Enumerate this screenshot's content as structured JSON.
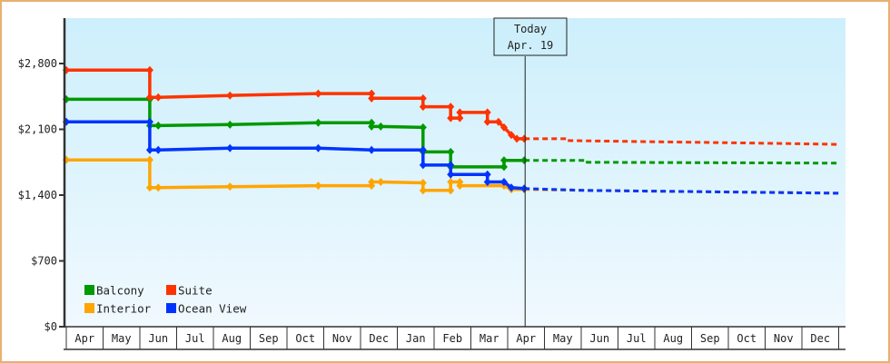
{
  "chart_data": {
    "type": "line",
    "subtype": "step",
    "title": "",
    "xlabel": "",
    "ylabel": "",
    "ylim": [
      0,
      3500
    ],
    "yticks": [
      {
        "value": 0,
        "label": "$0"
      },
      {
        "value": 700,
        "label": "$700"
      },
      {
        "value": 1400,
        "label": "$1,400"
      },
      {
        "value": 2100,
        "label": "$2,100"
      },
      {
        "value": 2800,
        "label": "$2,800"
      }
    ],
    "categories": [
      "Apr",
      "May",
      "Jun",
      "Jul",
      "Aug",
      "Sep",
      "Oct",
      "Nov",
      "Dec",
      "Jan",
      "Feb",
      "Mar",
      "Apr",
      "May",
      "Jun",
      "Jul",
      "Aug",
      "Sep",
      "Oct",
      "Nov",
      "Dec"
    ],
    "today_marker": {
      "line1": "Today",
      "line2": "Apr. 19",
      "month_index": 12.45
    },
    "legend_position": "bottom-left",
    "grid": false,
    "series": [
      {
        "name": "Balcony",
        "color": "#009900",
        "points": [
          [
            0,
            2420
          ],
          [
            2.27,
            2420
          ],
          [
            2.27,
            2140
          ],
          [
            2.5,
            2140
          ],
          [
            4.45,
            2150
          ],
          [
            6.85,
            2170
          ],
          [
            8.3,
            2170
          ],
          [
            8.3,
            2130
          ],
          [
            8.55,
            2130
          ],
          [
            9.7,
            2120
          ],
          [
            9.7,
            1860
          ],
          [
            10.45,
            1860
          ],
          [
            10.45,
            1700
          ],
          [
            11.9,
            1700
          ],
          [
            11.9,
            1770
          ],
          [
            12.45,
            1770
          ]
        ],
        "forecast": [
          [
            12.45,
            1770
          ],
          [
            14.1,
            1770
          ],
          [
            14.1,
            1750
          ],
          [
            21.0,
            1740
          ]
        ]
      },
      {
        "name": "Suite",
        "color": "#ff3300",
        "points": [
          [
            0,
            2730
          ],
          [
            2.27,
            2730
          ],
          [
            2.27,
            2440
          ],
          [
            2.5,
            2440
          ],
          [
            4.45,
            2460
          ],
          [
            6.85,
            2480
          ],
          [
            8.3,
            2480
          ],
          [
            8.3,
            2430
          ],
          [
            9.7,
            2430
          ],
          [
            9.7,
            2340
          ],
          [
            10.45,
            2340
          ],
          [
            10.45,
            2220
          ],
          [
            10.7,
            2220
          ],
          [
            10.7,
            2280
          ],
          [
            11.45,
            2280
          ],
          [
            11.45,
            2180
          ],
          [
            11.75,
            2180
          ],
          [
            11.9,
            2120
          ],
          [
            12.1,
            2040
          ],
          [
            12.25,
            2000
          ],
          [
            12.45,
            2000
          ]
        ],
        "forecast": [
          [
            12.45,
            2000
          ],
          [
            13.6,
            2000
          ],
          [
            13.6,
            1980
          ],
          [
            19.3,
            1950
          ],
          [
            21.0,
            1940
          ]
        ]
      },
      {
        "name": "Interior",
        "color": "#ffa500",
        "points": [
          [
            0,
            1775
          ],
          [
            2.27,
            1775
          ],
          [
            2.27,
            1480
          ],
          [
            2.5,
            1480
          ],
          [
            4.45,
            1490
          ],
          [
            6.85,
            1500
          ],
          [
            8.3,
            1500
          ],
          [
            8.3,
            1540
          ],
          [
            8.55,
            1540
          ],
          [
            9.7,
            1530
          ],
          [
            9.7,
            1450
          ],
          [
            10.45,
            1450
          ],
          [
            10.45,
            1540
          ],
          [
            10.7,
            1540
          ],
          [
            10.7,
            1500
          ],
          [
            11.9,
            1500
          ],
          [
            12.1,
            1460
          ],
          [
            12.45,
            1460
          ]
        ],
        "forecast": [
          [
            12.45,
            1460
          ],
          [
            14.1,
            1450
          ],
          [
            21.0,
            1420
          ]
        ]
      },
      {
        "name": "Ocean View",
        "color": "#0033ff",
        "points": [
          [
            0,
            2180
          ],
          [
            2.27,
            2180
          ],
          [
            2.27,
            1880
          ],
          [
            2.5,
            1880
          ],
          [
            4.45,
            1900
          ],
          [
            6.85,
            1900
          ],
          [
            8.3,
            1880
          ],
          [
            9.7,
            1880
          ],
          [
            9.7,
            1720
          ],
          [
            10.45,
            1720
          ],
          [
            10.45,
            1620
          ],
          [
            11.45,
            1620
          ],
          [
            11.45,
            1540
          ],
          [
            11.9,
            1540
          ],
          [
            12.1,
            1480
          ],
          [
            12.45,
            1470
          ]
        ],
        "forecast": [
          [
            12.45,
            1470
          ],
          [
            14.1,
            1450
          ],
          [
            21.0,
            1420
          ]
        ]
      }
    ]
  }
}
